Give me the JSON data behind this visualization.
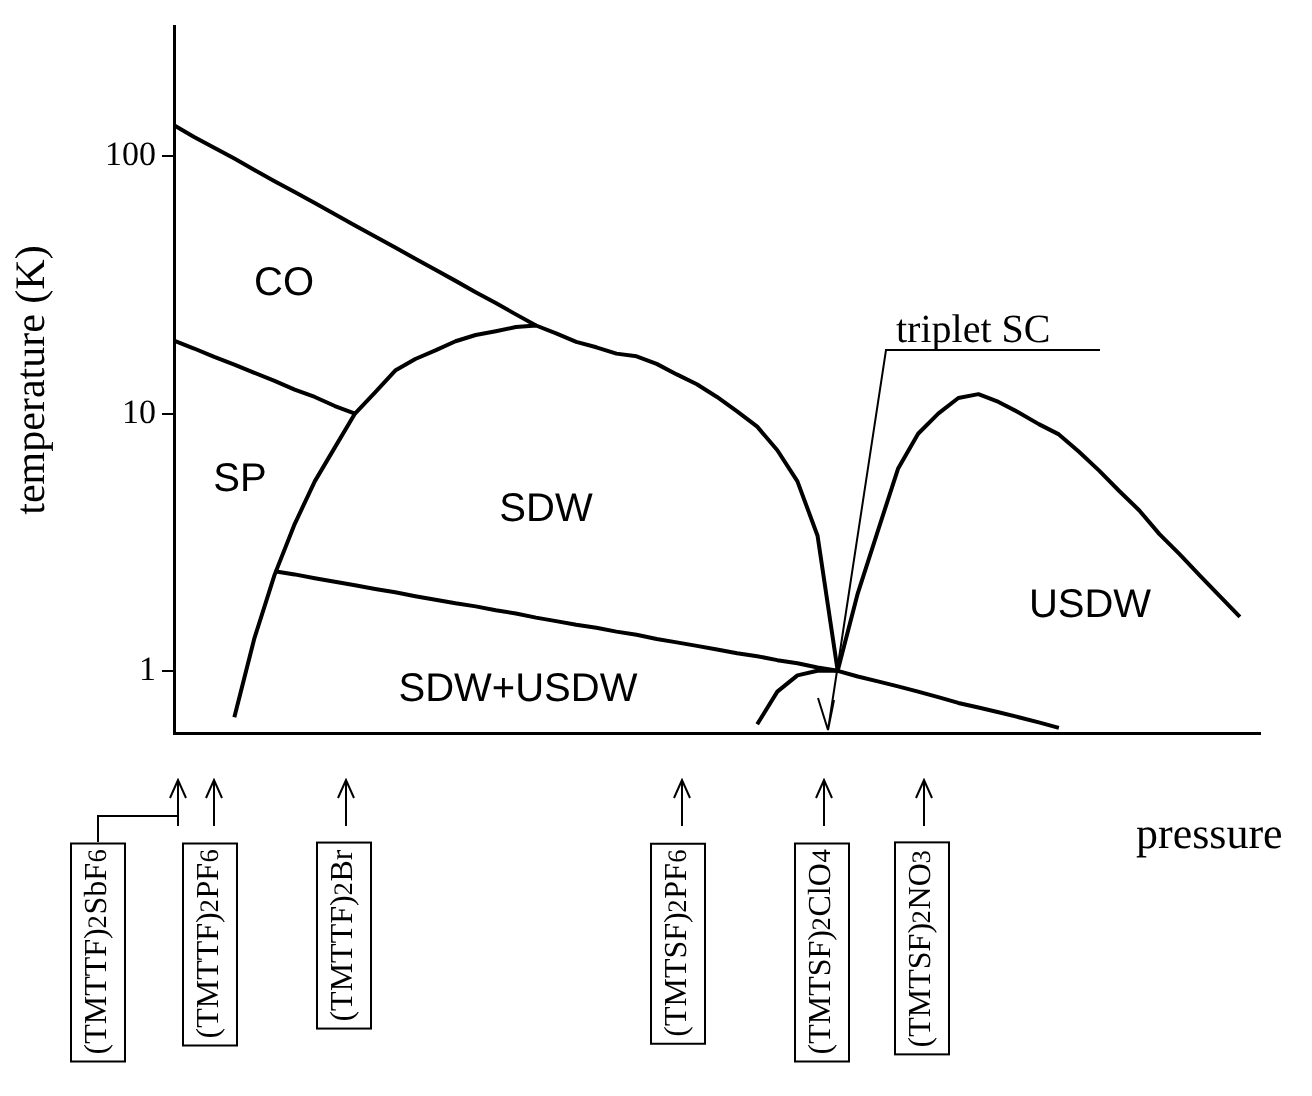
{
  "chart_data": {
    "type": "line",
    "xlabel": "pressure",
    "ylabel": "temperature (K)",
    "log": "y",
    "ylim": [
      0.57,
      320
    ],
    "yticks": [
      1,
      10,
      100
    ],
    "tick_labels": "y",
    "marker": "none",
    "categories": [
      null,
      null,
      null,
      null,
      null,
      null,
      null,
      null,
      null,
      null,
      null,
      null,
      null,
      null,
      null,
      null,
      null,
      null,
      null,
      null,
      null,
      null,
      null,
      null,
      null,
      null,
      null,
      null,
      null,
      null,
      null,
      null,
      null,
      null,
      null,
      null,
      null,
      null,
      null,
      null,
      null,
      null,
      null,
      null,
      null,
      null,
      null,
      null,
      null,
      null,
      null,
      null,
      null,
      null,
      null
    ],
    "series": [
      {
        "color": "#000000",
        "values": [
          132,
          119,
          108,
          98,
          88.5,
          80,
          72.6,
          65.8,
          59.6,
          53.8,
          48.8,
          44.2,
          40,
          36.2,
          32.8,
          29.6,
          26.9,
          24.3,
          22,
          null,
          null,
          null,
          null,
          null,
          null,
          null,
          null,
          null,
          null,
          null,
          null,
          null,
          null,
          null,
          null,
          null,
          null,
          null,
          null,
          null,
          null,
          null,
          null,
          null,
          null,
          null,
          null,
          null,
          null,
          null,
          null,
          null,
          null,
          null,
          null
        ]
      },
      {
        "color": "#000000",
        "values": [
          19.2,
          17.9,
          16.6,
          15.5,
          14.4,
          13.4,
          12.4,
          11.6,
          10.7,
          10,
          null,
          null,
          null,
          null,
          null,
          null,
          null,
          null,
          null,
          null,
          null,
          null,
          null,
          null,
          null,
          null,
          null,
          null,
          null,
          null,
          null,
          null,
          null,
          null,
          null,
          null,
          null,
          null,
          null,
          null,
          null,
          null,
          null,
          null,
          null,
          null,
          null,
          null,
          null,
          null,
          null,
          null,
          null,
          null,
          null
        ]
      },
      {
        "color": "#000000",
        "values": [
          null,
          null,
          null,
          0.66,
          1.34,
          2.36,
          3.72,
          5.45,
          7.39,
          10,
          12.1,
          14.7,
          16.3,
          17.6,
          19.1,
          20.2,
          20.9,
          21.7,
          22,
          20.5,
          19,
          18.1,
          17.1,
          16.7,
          15.6,
          14.2,
          13,
          11.6,
          10.2,
          8.9,
          7.2,
          5.45,
          3.35,
          1,
          null,
          null,
          null,
          null,
          null,
          null,
          null,
          null,
          null,
          null,
          null,
          null,
          null,
          null,
          null,
          null,
          null,
          null,
          null,
          null,
          null
        ]
      },
      {
        "color": "#000000",
        "values": [
          null,
          null,
          null,
          null,
          null,
          null,
          null,
          null,
          null,
          null,
          null,
          null,
          null,
          null,
          null,
          null,
          null,
          null,
          null,
          null,
          null,
          null,
          null,
          null,
          null,
          null,
          null,
          null,
          null,
          null,
          null,
          null,
          null,
          1,
          2,
          3.5,
          6.1,
          8.35,
          10,
          11.5,
          11.9,
          11.1,
          10.1,
          9.1,
          8.3,
          7.1,
          6,
          5,
          4.2,
          3.4,
          2.84,
          2.35,
          1.95,
          1.62,
          null
        ]
      },
      {
        "color": "#000000",
        "values": [
          null,
          null,
          null,
          null,
          null,
          2.44,
          2.37,
          2.29,
          2.22,
          2.15,
          2.08,
          2.02,
          1.95,
          1.89,
          1.83,
          1.78,
          1.72,
          1.67,
          1.61,
          1.56,
          1.51,
          1.47,
          1.42,
          1.38,
          1.33,
          1.29,
          1.25,
          1.21,
          1.17,
          1.14,
          1.1,
          1.07,
          1.03,
          1,
          0.95,
          0.91,
          0.87,
          0.83,
          0.79,
          0.75,
          0.72,
          0.69,
          0.66,
          0.63,
          0.6,
          null,
          null,
          null,
          null,
          null,
          null,
          null,
          null,
          null,
          null
        ]
      },
      {
        "color": "#000000",
        "values": [
          null,
          null,
          null,
          null,
          null,
          null,
          null,
          null,
          null,
          null,
          null,
          null,
          null,
          null,
          null,
          null,
          null,
          null,
          null,
          null,
          null,
          null,
          null,
          null,
          null,
          null,
          null,
          null,
          null,
          0.62,
          0.83,
          0.96,
          1,
          1,
          null,
          null,
          null,
          null,
          null,
          null,
          null,
          null,
          null,
          null,
          null,
          null,
          null,
          null,
          null,
          null,
          null,
          null,
          null,
          null,
          null
        ]
      }
    ],
    "annotations": [
      "CO",
      "SP",
      "SDW",
      "SDW+USDW",
      "USDW",
      "triplet SC",
      "(TMTTF)$_{2}$SbF$_{6}$",
      "(TMTTF)$_{2}$PF$_{6}$",
      "(TMTTF)$_{2}$Br",
      "(TMTSF)$_{2}$PF$_{6}$",
      "(TMTSF)$_{2}$ClO$_{4}$",
      "(TMTSF)$_{2}$NO$_{3}$"
    ]
  }
}
